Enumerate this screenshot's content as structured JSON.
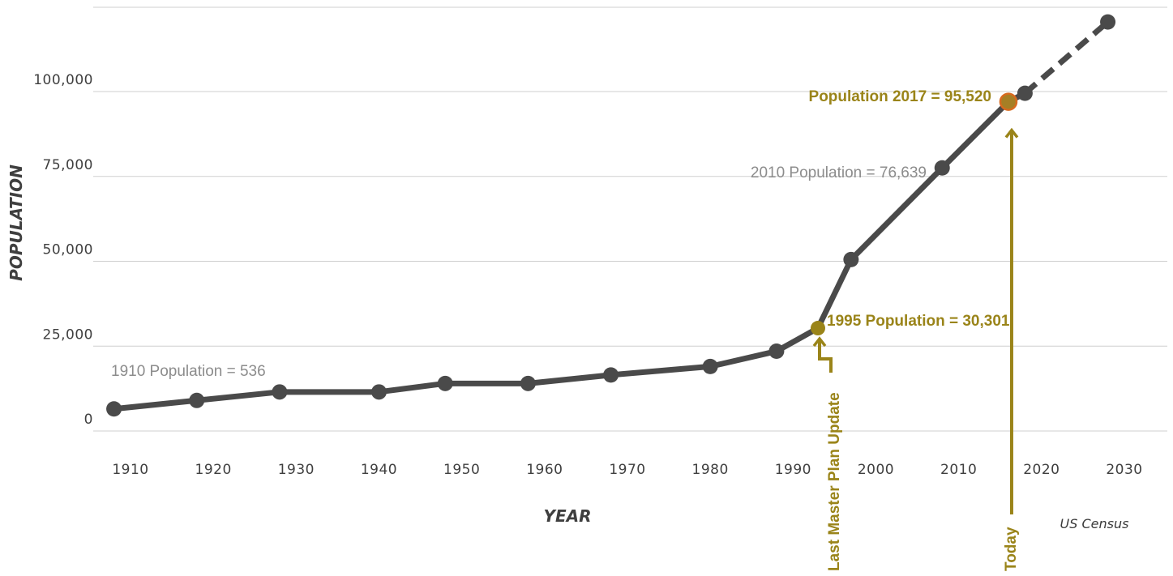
{
  "chart_data": {
    "type": "line",
    "x_label": "YEAR",
    "y_label": "POPULATION",
    "source": "US Census",
    "y_range": [
      0,
      120000
    ],
    "x_range": [
      1907,
      2035
    ],
    "y_ticks": [
      {
        "value": 0,
        "label": "0"
      },
      {
        "value": 25000,
        "label": "25,000"
      },
      {
        "value": 50000,
        "label": "50,000"
      },
      {
        "value": 75000,
        "label": "75,000"
      },
      {
        "value": 100000,
        "label": "100,000"
      }
    ],
    "x_ticks": [
      {
        "value": 1910,
        "label": "1910"
      },
      {
        "value": 1920,
        "label": "1920"
      },
      {
        "value": 1930,
        "label": "1930"
      },
      {
        "value": 1940,
        "label": "1940"
      },
      {
        "value": 1950,
        "label": "1950"
      },
      {
        "value": 1960,
        "label": "1960"
      },
      {
        "value": 1970,
        "label": "1970"
      },
      {
        "value": 1980,
        "label": "1980"
      },
      {
        "value": 1990,
        "label": "1990"
      },
      {
        "value": 2000,
        "label": "2000"
      },
      {
        "value": 2010,
        "label": "2010"
      },
      {
        "value": 2020,
        "label": "2020"
      },
      {
        "value": 2030,
        "label": "2030"
      }
    ],
    "grid": true,
    "series": [
      {
        "color": "#4a4a4a",
        "points": [
          {
            "x": 1908,
            "y": 6500
          },
          {
            "x": 1918,
            "y": 9000
          },
          {
            "x": 1928,
            "y": 11500
          },
          {
            "x": 1940,
            "y": 11500
          },
          {
            "x": 1948,
            "y": 14000
          },
          {
            "x": 1958,
            "y": 14000
          },
          {
            "x": 1968,
            "y": 16500
          },
          {
            "x": 1980,
            "y": 19000
          },
          {
            "x": 1988,
            "y": 23500
          },
          {
            "x": 1993,
            "y": 30301,
            "highlight": "master_plan"
          },
          {
            "x": 1997,
            "y": 50500
          },
          {
            "x": 2008,
            "y": 77500
          },
          {
            "x": 2016,
            "y": 97000,
            "highlight": "today"
          },
          {
            "x": 2018,
            "y": 99500
          },
          {
            "x": 2028,
            "y": 120500
          }
        ],
        "projected_from_index": 13
      }
    ],
    "annotations": [
      {
        "text": "1910 Population = 536",
        "color": "#8c8c8c"
      },
      {
        "text": "1995 Population = 30,301",
        "color": "#9a8419"
      },
      {
        "text": "2010 Population = 76,639",
        "color": "#8c8c8c"
      },
      {
        "text": "Population 2017 = 95,520",
        "color": "#9a8419"
      }
    ],
    "markers": [
      {
        "text": "Last Master Plan Update",
        "color": "#9a8419"
      },
      {
        "text": "Today",
        "color": "#9a8419"
      }
    ],
    "colors": {
      "line": "#4a4a4a",
      "grid": "#cfcfcf",
      "accent": "#9a8419",
      "today_fill": "#a67f25",
      "today_stroke": "#d86a1f"
    }
  }
}
